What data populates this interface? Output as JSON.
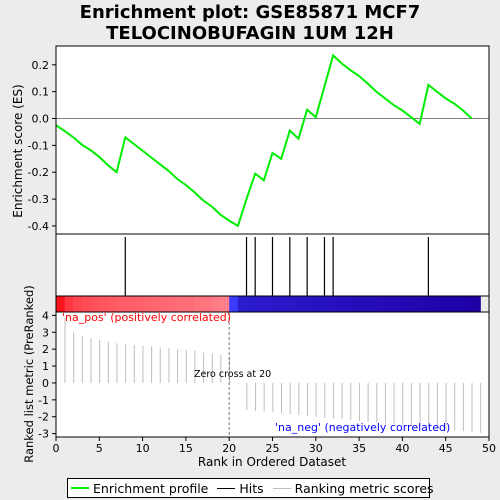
{
  "title": {
    "line1": "Enrichment plot: GSE85871 MCF7",
    "line2": "TELOCINOBUFAGIN 1UM 12H"
  },
  "labels": {
    "pos_label": "'na_pos' (positively correlated)",
    "neg_label": "'na_neg' (negatively correlated)",
    "zero_cross": "Zero cross at 20"
  },
  "legend": {
    "enrichment": "Enrichment profile",
    "hits": "Hits",
    "ranking": "Ranking metric scores"
  },
  "colors": {
    "enrichment_line": "#00ee00",
    "hits": "#000000",
    "ranking": "#bebebe",
    "pos_label": "#ff0000",
    "neg_label": "#0000ff"
  },
  "chart_data": [
    {
      "type": "line",
      "ylabel": "Enrichment score (ES)",
      "ylim": [
        -0.43,
        0.27
      ],
      "yticks": [
        -0.4,
        -0.3,
        -0.2,
        -0.1,
        0.0,
        0.1,
        0.2
      ],
      "yticklabels": [
        "-0.4",
        "-0.3",
        "-0.2",
        "-0.1",
        "0.0",
        "0.1",
        "0.2"
      ],
      "xlim": [
        0,
        50
      ],
      "x": [
        0,
        1,
        2,
        3,
        4,
        5,
        6,
        7,
        8,
        9,
        10,
        11,
        12,
        13,
        14,
        15,
        16,
        17,
        18,
        19,
        20,
        21,
        22,
        23,
        24,
        25,
        26,
        27,
        28,
        29,
        30,
        31,
        32,
        33,
        34,
        35,
        36,
        37,
        38,
        39,
        40,
        41,
        42,
        43,
        44,
        45,
        46,
        47,
        48
      ],
      "y": [
        -0.025,
        -0.047,
        -0.07,
        -0.098,
        -0.118,
        -0.143,
        -0.174,
        -0.2,
        -0.07,
        -0.095,
        -0.12,
        -0.145,
        -0.17,
        -0.195,
        -0.225,
        -0.248,
        -0.275,
        -0.305,
        -0.328,
        -0.358,
        -0.38,
        -0.4,
        -0.3,
        -0.205,
        -0.23,
        -0.128,
        -0.15,
        -0.045,
        -0.075,
        0.033,
        0.005,
        0.12,
        0.235,
        0.205,
        0.18,
        0.158,
        0.13,
        0.1,
        0.075,
        0.05,
        0.03,
        0.005,
        -0.02,
        0.125,
        0.1,
        0.075,
        0.055,
        0.03,
        0.0
      ],
      "grid": false
    },
    {
      "type": "scatter",
      "description_hits": "Hits",
      "x": [
        8,
        22,
        23,
        25,
        27,
        29,
        31,
        32,
        43
      ]
    },
    {
      "type": "bar",
      "xlabel": "Rank in Ordered Dataset",
      "ylabel": "Ranked list metric (PreRanked)",
      "xlim": [
        0,
        50
      ],
      "xticks": [
        0,
        5,
        10,
        15,
        20,
        25,
        30,
        35,
        40,
        45,
        50
      ],
      "xticklabels": [
        "0",
        "5",
        "10",
        "15",
        "20",
        "25",
        "30",
        "35",
        "40",
        "45",
        "50"
      ],
      "ylim": [
        -3.2,
        4.2
      ],
      "yticks": [
        -3,
        -2,
        -1,
        0,
        1,
        2,
        3,
        4
      ],
      "yticklabels": [
        "-3",
        "-2",
        "-1",
        "0",
        "1",
        "2",
        "3",
        "4"
      ],
      "x": [
        0,
        1,
        2,
        3,
        4,
        5,
        6,
        7,
        8,
        9,
        10,
        11,
        12,
        13,
        14,
        15,
        16,
        17,
        18,
        19,
        20,
        21,
        22,
        23,
        24,
        25,
        26,
        27,
        28,
        29,
        30,
        31,
        32,
        33,
        34,
        35,
        36,
        37,
        38,
        39,
        40,
        41,
        42,
        43,
        44,
        45,
        46,
        47,
        48
      ],
      "values": [
        3.85,
        3.05,
        2.8,
        2.65,
        2.55,
        2.45,
        2.35,
        2.3,
        2.25,
        2.2,
        2.15,
        2.1,
        2.05,
        2.0,
        1.95,
        1.9,
        1.8,
        1.75,
        1.65,
        1.55,
        -0.05,
        -1.6,
        -1.65,
        -1.7,
        -1.75,
        -1.8,
        -1.85,
        -1.9,
        -1.95,
        -2.0,
        -2.05,
        -2.1,
        -2.15,
        -2.2,
        -2.25,
        -2.3,
        -2.35,
        -2.4,
        -2.45,
        -2.5,
        -2.55,
        -2.6,
        -2.65,
        -2.7,
        -2.75,
        -2.8,
        -2.85,
        -2.9,
        -2.95
      ],
      "zero_cross": 20
    }
  ]
}
